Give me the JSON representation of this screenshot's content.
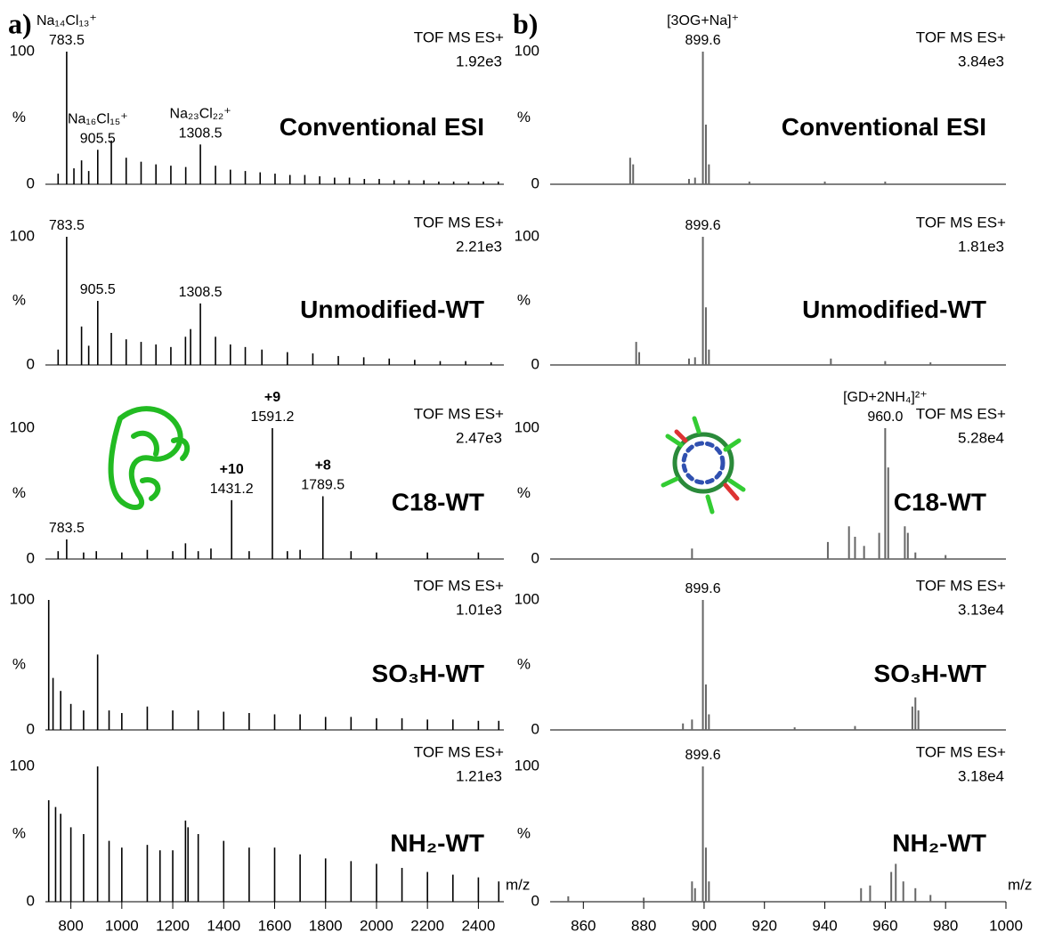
{
  "chart_data": [
    {
      "type": "spectrum",
      "panel_label": "a)",
      "mode": "TOF MS ES+",
      "intensity": "1.92e3",
      "condition": "Conventional ESI",
      "condition_color": "#000000",
      "color": "#000000",
      "ylim": [
        0,
        100
      ],
      "yticks": [
        0,
        100
      ],
      "ylabel": "%",
      "xlim": [
        700,
        2500
      ],
      "x": [
        750,
        783.5,
        812,
        841.9,
        870,
        905.5,
        958.8,
        1017.2,
        1075.7,
        1134.1,
        1192.6,
        1251.0,
        1308.5,
        1367.9,
        1426.3,
        1484.8,
        1543.2,
        1601.6,
        1660.1,
        1718.5,
        1776.9,
        1835.4,
        1893.8,
        1952.3,
        2010.7,
        2069.1,
        2127.6,
        2186.0,
        2244.5,
        2302.9,
        2361.3,
        2419.8,
        2478.2
      ],
      "values": [
        8,
        100,
        12,
        18,
        10,
        26,
        33,
        20,
        17,
        15,
        14,
        13,
        30,
        14,
        11,
        10,
        9,
        8,
        7,
        7,
        6,
        5,
        5,
        4,
        4,
        3,
        3,
        3,
        2,
        2,
        2,
        2,
        2
      ],
      "annotations": [
        {
          "ion": "Na₁₄Cl₁₃⁺",
          "label": "783.5"
        },
        {
          "ion": "Na₁₆Cl₁₅⁺",
          "label": "905.5"
        },
        {
          "ion": "Na₂₃Cl₂₂⁺",
          "label": "1308.5"
        }
      ],
      "annotation_color": "#1a1aff"
    },
    {
      "type": "spectrum",
      "mode": "TOF MS ES+",
      "intensity": "2.21e3",
      "condition": "Unmodified-WT",
      "condition_color": "#1a1a6e",
      "color": "#000000",
      "ylim": [
        0,
        100
      ],
      "yticks": [
        0,
        100
      ],
      "ylabel": "%",
      "xlim": [
        700,
        2500
      ],
      "x": [
        750,
        783.5,
        841.9,
        870,
        905.5,
        958.8,
        1017.2,
        1075.7,
        1134.1,
        1192.6,
        1250,
        1270,
        1308.5,
        1367.9,
        1426.3,
        1484.8,
        1550,
        1650,
        1750,
        1850,
        1950,
        2050,
        2150,
        2250,
        2350,
        2450
      ],
      "values": [
        12,
        100,
        30,
        15,
        50,
        25,
        20,
        18,
        16,
        14,
        22,
        28,
        48,
        22,
        16,
        14,
        12,
        10,
        9,
        7,
        6,
        5,
        4,
        3,
        3,
        2
      ],
      "annotations": [
        {
          "label": "783.5"
        },
        {
          "label": "905.5"
        },
        {
          "label": "1308.5"
        }
      ]
    },
    {
      "type": "spectrum",
      "mode": "TOF MS ES+",
      "intensity": "2.47e3",
      "condition": "C18-WT",
      "condition_color": "#7030a0",
      "color": "#000000",
      "ylim": [
        0,
        100
      ],
      "yticks": [
        0,
        100
      ],
      "ylabel": "%",
      "xlim": [
        700,
        2500
      ],
      "x": [
        750,
        783.5,
        850,
        900,
        1000,
        1100,
        1200,
        1250,
        1300,
        1350,
        1431.2,
        1500,
        1591.2,
        1650,
        1700,
        1789.5,
        1900,
        2000,
        2200,
        2400
      ],
      "values": [
        6,
        15,
        5,
        6,
        5,
        7,
        6,
        12,
        6,
        8,
        45,
        6,
        100,
        6,
        7,
        48,
        6,
        5,
        5,
        5
      ],
      "annotations": [
        {
          "label": "783.5"
        },
        {
          "charge": "+10",
          "label": "1431.2"
        },
        {
          "charge": "+9",
          "label": "1591.2"
        },
        {
          "charge": "+8",
          "label": "1789.5"
        }
      ],
      "annotation_color": "#e02020"
    },
    {
      "type": "spectrum",
      "mode": "TOF MS ES+",
      "intensity": "1.01e3",
      "condition": "SO₃H-WT",
      "condition_color": "#1010ee",
      "color": "#000000",
      "ylim": [
        0,
        100
      ],
      "yticks": [
        0,
        100
      ],
      "ylabel": "%",
      "xlim": [
        700,
        2500
      ],
      "x": [
        713,
        730,
        760,
        800,
        850,
        905,
        950,
        1000,
        1100,
        1200,
        1300,
        1400,
        1500,
        1600,
        1700,
        1800,
        1900,
        2000,
        2100,
        2200,
        2300,
        2400,
        2480
      ],
      "values": [
        100,
        40,
        30,
        20,
        15,
        58,
        15,
        13,
        18,
        15,
        15,
        14,
        13,
        12,
        12,
        10,
        10,
        9,
        9,
        8,
        8,
        7,
        7
      ]
    },
    {
      "type": "spectrum",
      "mode": "TOF MS ES+",
      "intensity": "1.21e3",
      "condition": "NH₂-WT",
      "condition_color": "#ee1010",
      "color": "#000000",
      "ylim": [
        0,
        100
      ],
      "yticks": [
        0,
        100
      ],
      "ylabel": "%",
      "xlim": [
        700,
        2500
      ],
      "xticks": [
        800,
        1000,
        1200,
        1400,
        1600,
        1800,
        2000,
        2200,
        2400
      ],
      "xlabel": "m/z",
      "x": [
        713,
        740,
        760,
        800,
        850,
        905,
        950,
        1000,
        1100,
        1150,
        1200,
        1250,
        1260,
        1300,
        1400,
        1500,
        1600,
        1700,
        1800,
        1900,
        2000,
        2100,
        2200,
        2300,
        2400,
        2480
      ],
      "values": [
        75,
        70,
        65,
        55,
        50,
        100,
        45,
        40,
        42,
        38,
        38,
        60,
        55,
        50,
        45,
        40,
        40,
        35,
        32,
        30,
        28,
        25,
        22,
        20,
        18,
        15
      ]
    },
    {
      "type": "spectrum",
      "panel_label": "b)",
      "mode": "TOF MS ES+",
      "intensity": "3.84e3",
      "condition": "Conventional ESI",
      "condition_color": "#000000",
      "color": "#666666",
      "ylim": [
        0,
        100
      ],
      "yticks": [
        0,
        100
      ],
      "ylabel": "%",
      "xlim": [
        849,
        1000
      ],
      "x": [
        875.5,
        876.5,
        895,
        897,
        899.6,
        900.6,
        901.6,
        915,
        940,
        960
      ],
      "values": [
        20,
        15,
        4,
        5,
        100,
        45,
        15,
        2,
        2,
        2
      ],
      "annotations": [
        {
          "ion": "[3OG+Na]⁺",
          "label": "899.6"
        }
      ],
      "annotation_color": "#1a1aff"
    },
    {
      "type": "spectrum",
      "mode": "TOF MS ES+",
      "intensity": "1.81e3",
      "condition": "Unmodified-WT",
      "condition_color": "#1a1a6e",
      "color": "#666666",
      "ylim": [
        0,
        100
      ],
      "yticks": [
        0,
        100
      ],
      "ylabel": "%",
      "xlim": [
        849,
        1000
      ],
      "x": [
        877.5,
        878.5,
        895,
        897,
        899.6,
        900.6,
        901.6,
        942,
        960,
        975
      ],
      "values": [
        18,
        10,
        5,
        6,
        100,
        45,
        12,
        5,
        3,
        2
      ],
      "annotations": [
        {
          "label": "899.6"
        }
      ]
    },
    {
      "type": "spectrum",
      "mode": "TOF MS ES+",
      "intensity": "5.28e4",
      "condition": "C18-WT",
      "condition_color": "#7030a0",
      "color": "#666666",
      "ylim": [
        0,
        100
      ],
      "yticks": [
        0,
        100
      ],
      "ylabel": "%",
      "xlim": [
        849,
        1000
      ],
      "x": [
        896,
        941,
        948,
        950,
        953,
        958,
        960.0,
        961,
        966.5,
        967.5,
        970,
        980
      ],
      "values": [
        8,
        13,
        25,
        17,
        10,
        20,
        100,
        70,
        25,
        20,
        5,
        3
      ],
      "annotations": [
        {
          "ion": "[GD+2NH₄]²⁺",
          "label": "960.0"
        }
      ],
      "annotation_color": "#e02020"
    },
    {
      "type": "spectrum",
      "mode": "TOF MS ES+",
      "intensity": "3.13e4",
      "condition": "SO₃H-WT",
      "condition_color": "#1010ee",
      "color": "#666666",
      "ylim": [
        0,
        100
      ],
      "yticks": [
        0,
        100
      ],
      "ylabel": "%",
      "xlim": [
        849,
        1000
      ],
      "x": [
        893,
        896,
        899.6,
        900.6,
        901.6,
        930,
        950,
        969,
        970,
        971
      ],
      "values": [
        5,
        8,
        100,
        35,
        12,
        2,
        3,
        18,
        25,
        15
      ],
      "annotations": [
        {
          "label": "899.6"
        }
      ]
    },
    {
      "type": "spectrum",
      "mode": "TOF MS ES+",
      "intensity": "3.18e4",
      "condition": "NH₂-WT",
      "condition_color": "#ee1010",
      "color": "#666666",
      "ylim": [
        0,
        100
      ],
      "yticks": [
        0,
        100
      ],
      "ylabel": "%",
      "xlim": [
        849,
        1000
      ],
      "xticks": [
        860,
        880,
        900,
        920,
        940,
        960,
        980,
        1000
      ],
      "xlabel": "m/z",
      "x": [
        855,
        880,
        896,
        897,
        899.6,
        900.6,
        901.6,
        952,
        955,
        962,
        963.5,
        966,
        970,
        975
      ],
      "values": [
        4,
        3,
        15,
        10,
        100,
        40,
        15,
        10,
        12,
        22,
        28,
        15,
        10,
        5
      ],
      "annotations": [
        {
          "label": "899.6"
        }
      ]
    }
  ]
}
